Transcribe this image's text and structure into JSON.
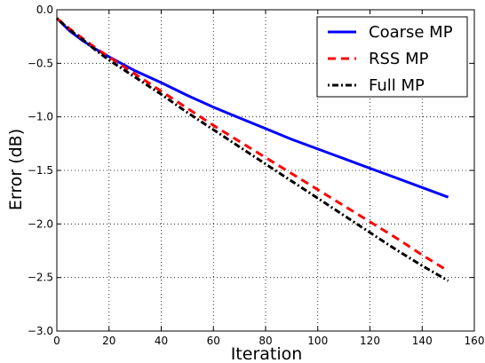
{
  "chart_data": {
    "type": "line",
    "xlabel": "Iteration",
    "ylabel": "Error (dB)",
    "xlim": [
      0,
      160
    ],
    "ylim": [
      -3.0,
      0.0
    ],
    "xticks": [
      0,
      20,
      40,
      60,
      80,
      100,
      120,
      140,
      160
    ],
    "yticks": [
      0.0,
      -0.5,
      -1.0,
      -1.5,
      -2.0,
      -2.5,
      -3.0
    ],
    "xtick_labels": [
      "0",
      "20",
      "40",
      "60",
      "80",
      "100",
      "120",
      "140",
      "160"
    ],
    "ytick_labels": [
      "0.0",
      "−0.5",
      "−1.0",
      "−1.5",
      "−2.0",
      "−2.5",
      "−3.0"
    ],
    "grid": true,
    "legend_position": "top-right",
    "x": [
      0,
      5,
      10,
      15,
      20,
      30,
      40,
      50,
      60,
      70,
      80,
      90,
      100,
      110,
      120,
      130,
      140,
      150
    ],
    "series": [
      {
        "name": "Coarse MP",
        "color": "#0000ff",
        "style": "solid",
        "values": [
          -0.08,
          -0.2,
          -0.29,
          -0.37,
          -0.44,
          -0.57,
          -0.68,
          -0.8,
          -0.91,
          -1.01,
          -1.11,
          -1.21,
          -1.3,
          -1.39,
          -1.48,
          -1.57,
          -1.66,
          -1.75
        ]
      },
      {
        "name": "RSS MP",
        "color": "#ff0000",
        "style": "dashed",
        "values": [
          -0.08,
          -0.18,
          -0.27,
          -0.36,
          -0.44,
          -0.6,
          -0.76,
          -0.92,
          -1.08,
          -1.23,
          -1.38,
          -1.53,
          -1.68,
          -1.83,
          -1.98,
          -2.13,
          -2.29,
          -2.44
        ]
      },
      {
        "name": "Full MP",
        "color": "#000000",
        "style": "dashdot",
        "values": [
          -0.08,
          -0.19,
          -0.28,
          -0.38,
          -0.47,
          -0.63,
          -0.79,
          -0.96,
          -1.12,
          -1.28,
          -1.44,
          -1.6,
          -1.76,
          -1.92,
          -2.08,
          -2.24,
          -2.39,
          -2.53
        ]
      }
    ]
  }
}
